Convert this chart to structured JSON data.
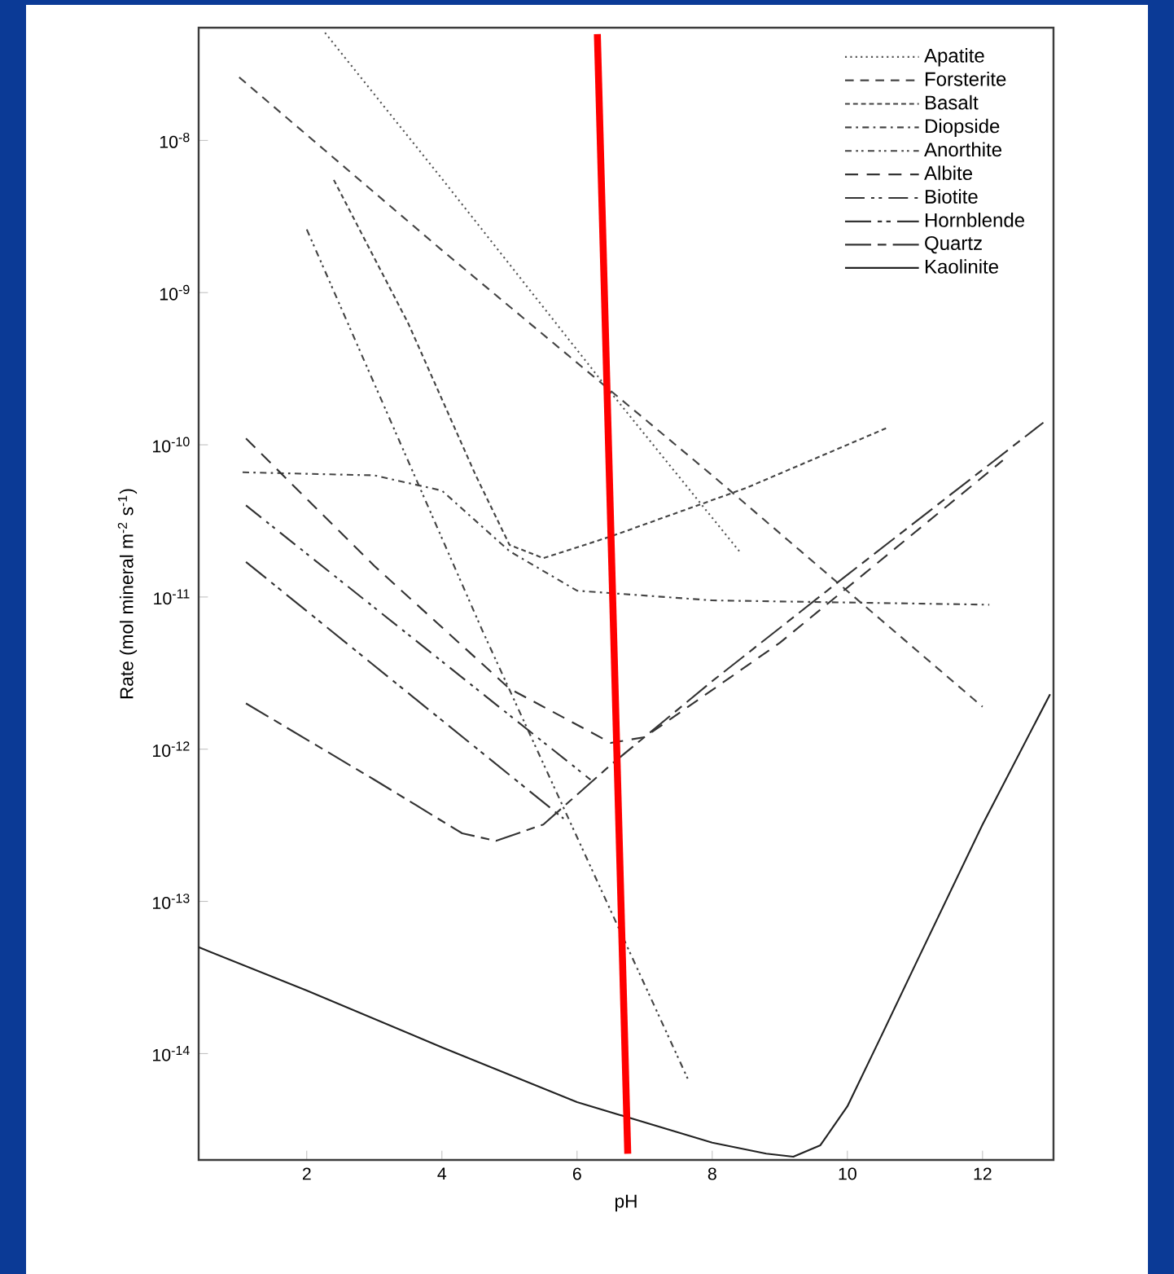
{
  "chart_data": {
    "type": "line",
    "xlabel": "pH",
    "ylabel": "Rate (mol mineral m$^{-2}$ s$^{-1}$)",
    "log": true,
    "legend": "top right",
    "xlim": [
      0.4,
      13.05
    ],
    "ylim": [
      2e-15,
      5.5e-08
    ],
    "xticks": [
      2,
      4,
      6,
      8,
      10,
      12
    ],
    "yticks": [
      {
        "value": 1e-08,
        "label": "10$^{-8}$"
      },
      {
        "value": 1e-09,
        "label": "10$^{-9}$"
      },
      {
        "value": 1e-10,
        "label": "10$^{-10}$"
      },
      {
        "value": 1e-11,
        "label": "10$^{-11}$"
      },
      {
        "value": 1e-12,
        "label": "10$^{-12}$"
      },
      {
        "value": 1e-13,
        "label": "10$^{-13}$"
      },
      {
        "value": 1e-14,
        "label": "10$^{-14}$"
      }
    ],
    "series": [
      {
        "name": "Apatite",
        "color": "#555555",
        "line_style": "dotted",
        "x": [
          2.27,
          4,
          6.4,
          8.4
        ],
        "values": [
          5.1e-08,
          5.6e-09,
          2.5e-10,
          2e-11
        ]
      },
      {
        "name": "Forsterite",
        "color": "#444444",
        "line_style": "dashed",
        "x": [
          1.0,
          4,
          8,
          12.0
        ],
        "values": [
          2.6e-08,
          1.9e-09,
          6.3e-11,
          1.9e-12
        ]
      },
      {
        "name": "Basalt",
        "color": "#444444",
        "line_style": "dashed",
        "x": [
          2.4,
          3.5,
          4.5,
          5.0,
          5.5,
          6.5,
          8.5,
          10.6
        ],
        "values": [
          5.5e-09,
          6.3e-10,
          6.3e-11,
          2.2e-11,
          1.8e-11,
          2.5e-11,
          5.2e-11,
          1.3e-10
        ]
      },
      {
        "name": "Diopside",
        "color": "#444444",
        "line_style": "dashed",
        "x": [
          1.05,
          3.0,
          4.0,
          5.0,
          6.0,
          8,
          12.1
        ],
        "values": [
          6.6e-11,
          6.3e-11,
          5e-11,
          2e-11,
          1.1e-11,
          9.5e-12,
          8.9e-12
        ]
      },
      {
        "name": "Anorthite",
        "color": "#444444",
        "line_style": "dashed",
        "x": [
          2.0,
          4.6,
          7.64
        ],
        "values": [
          2.6e-09,
          6e-12,
          6.8e-15
        ]
      },
      {
        "name": "Albite",
        "color": "#333333",
        "line_style": "dashed",
        "x": [
          1.1,
          3,
          5,
          6.5,
          7,
          9,
          12.3
        ],
        "values": [
          1.1e-10,
          1.6e-11,
          2.5e-12,
          1.1e-12,
          1.2e-12,
          5e-12,
          7.9e-11
        ]
      },
      {
        "name": "Biotite",
        "color": "#333333",
        "line_style": "dashed",
        "x": [
          1.1,
          6.2
        ],
        "values": [
          4e-11,
          6.3e-13
        ]
      },
      {
        "name": "Hornblende",
        "color": "#333333",
        "line_style": "dashed",
        "x": [
          1.1,
          5.8
        ],
        "values": [
          1.7e-11,
          3.5e-13
        ]
      },
      {
        "name": "Quartz",
        "color": "#333333",
        "line_style": "dashed",
        "x": [
          1.1,
          3,
          4.3,
          4.8,
          5.5,
          6.5,
          8,
          10,
          12.9
        ],
        "values": [
          2e-12,
          6.3e-13,
          2.8e-13,
          2.5e-13,
          3.2e-13,
          7.9e-13,
          2.8e-12,
          1.4e-11,
          1.4e-10
        ]
      },
      {
        "name": "Kaolinite",
        "color": "#222222",
        "line_style": "solid",
        "x": [
          0.4,
          2,
          4,
          6,
          8,
          8.8,
          9.2,
          9.6,
          10,
          10.5,
          11,
          12,
          13
        ],
        "values": [
          5e-14,
          2.6e-14,
          1.1e-14,
          4.8e-15,
          2.6e-15,
          2.2e-15,
          2.1e-15,
          2.5e-15,
          4.5e-15,
          1.3e-14,
          3.8e-14,
          3.2e-13,
          2.3e-12
        ]
      },
      {
        "color": "#ff0000",
        "line_style": "solid",
        "x": [
          6.3,
          6.75
        ],
        "values": [
          5e-08,
          2.2e-15
        ]
      }
    ]
  }
}
